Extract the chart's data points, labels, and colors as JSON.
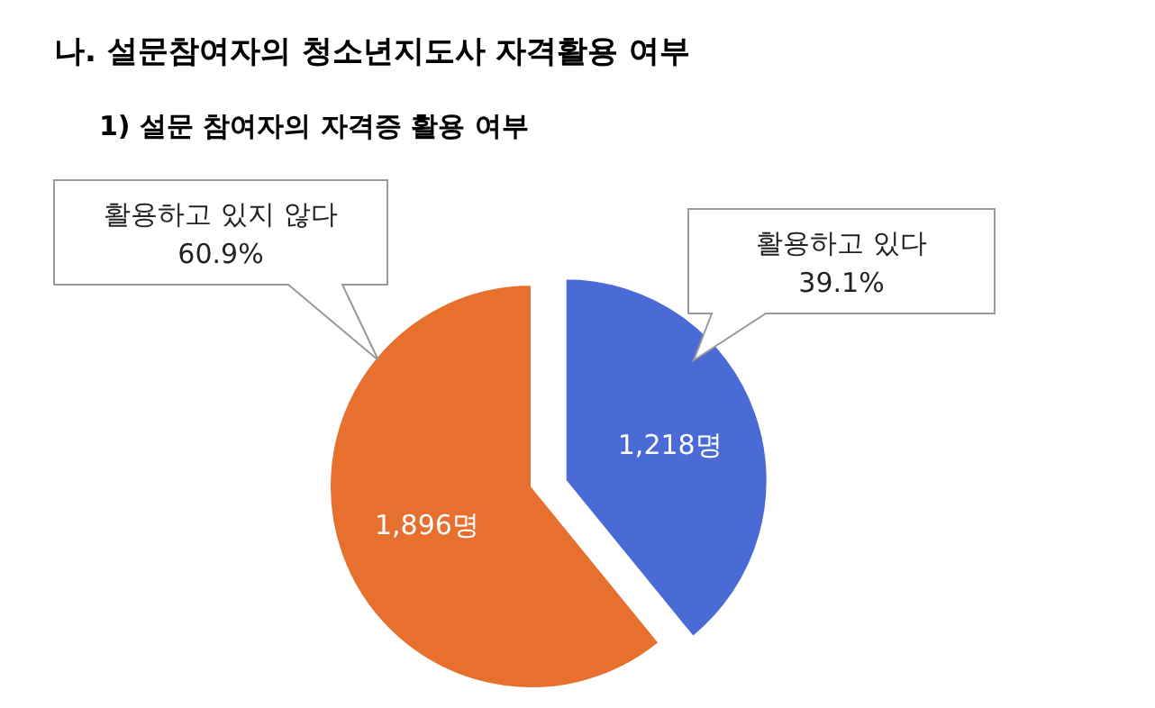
{
  "chart_data": {
    "type": "pie",
    "title": "나. 설문참여자의 청소년지도사 자격활용 여부",
    "subtitle": "1) 설문 참여자의 자격증 활용 여부",
    "categories": [
      "활용하고 있다",
      "활용하고 있지 않다"
    ],
    "values": [
      1218,
      1896
    ],
    "value_labels": [
      "1,218명",
      "1,896명"
    ],
    "colors": [
      "#4a6ad6",
      "#e8702e"
    ],
    "annotations": [
      "39.1%",
      "60.9%"
    ]
  }
}
